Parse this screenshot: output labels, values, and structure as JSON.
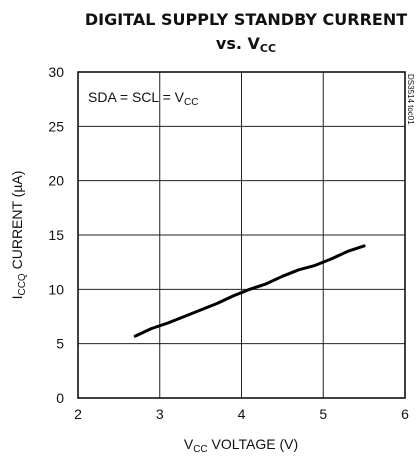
{
  "chart_data": {
    "type": "line",
    "title_line1": "DIGITAL SUPPLY STANDBY CURRENT",
    "title_line2_prefix": "vs. V",
    "title_line2_sub": "CC",
    "xlabel_prefix": "V",
    "xlabel_sub": "CC",
    "xlabel_suffix": " VOLTAGE (V)",
    "ylabel_prefix": "I",
    "ylabel_sub": "CCQ",
    "ylabel_suffix": " CURRENT (µA)",
    "annotation_prefix": "SDA = SCL = V",
    "annotation_sub": "CC",
    "side_id": "DS3514 toc01",
    "xlim": [
      2,
      6
    ],
    "ylim": [
      0,
      30
    ],
    "xticks": [
      2,
      3,
      4,
      5,
      6
    ],
    "yticks": [
      0,
      5,
      10,
      15,
      20,
      25,
      30
    ],
    "grid": true,
    "series": [
      {
        "x": [
          2.7,
          2.9,
          3.1,
          3.3,
          3.5,
          3.7,
          3.9,
          4.1,
          4.3,
          4.5,
          4.7,
          4.9,
          5.1,
          5.3,
          5.5
        ],
        "y": [
          5.7,
          6.4,
          6.9,
          7.5,
          8.1,
          8.7,
          9.4,
          10.0,
          10.5,
          11.2,
          11.8,
          12.2,
          12.8,
          13.5,
          14.0
        ]
      }
    ]
  }
}
